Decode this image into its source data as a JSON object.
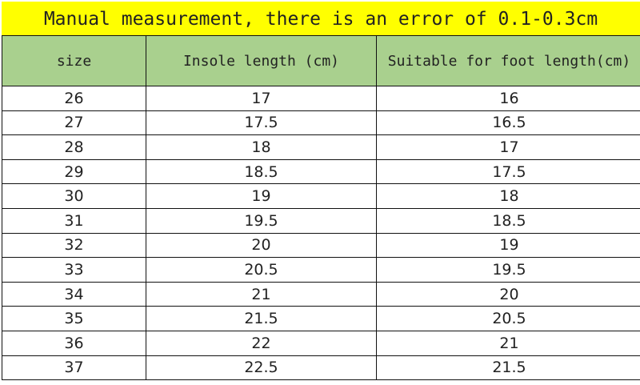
{
  "title": "Manual measurement, there is an error of 0.1-0.3cm",
  "headers": [
    "size",
    "Insole length (cm)",
    "Suitable for foot length(cm)"
  ],
  "rows": [
    [
      "26",
      "17",
      "16"
    ],
    [
      "27",
      "17.5",
      "16.5"
    ],
    [
      "28",
      "18",
      "17"
    ],
    [
      "29",
      "18.5",
      "17.5"
    ],
    [
      "30",
      "19",
      "18"
    ],
    [
      "31",
      "19.5",
      "18.5"
    ],
    [
      "32",
      "20",
      "19"
    ],
    [
      "33",
      "20.5",
      "19.5"
    ],
    [
      "34",
      "21",
      "20"
    ],
    [
      "35",
      "21.5",
      "20.5"
    ],
    [
      "36",
      "22",
      "21"
    ],
    [
      "37",
      "22.5",
      "21.5"
    ]
  ],
  "colors": {
    "banner": "#ffff00",
    "header": "#a9d08e"
  }
}
